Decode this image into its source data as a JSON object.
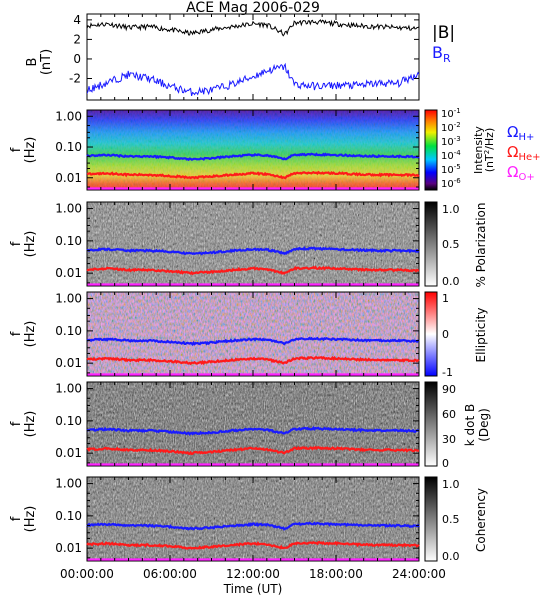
{
  "title": "ACE Mag 2006-029",
  "time_axis": {
    "label": "Time (UT)",
    "ticks": [
      "00:00:00",
      "06:00:00",
      "12:00:00",
      "18:00:00",
      "24:00:00"
    ],
    "range_hours": [
      0,
      24
    ]
  },
  "panels": {
    "b": {
      "ylabel": "B",
      "yunit": "(nT)",
      "ytick_labels": [
        "4",
        "2",
        "0",
        "-2"
      ],
      "ytick_values": [
        4,
        2,
        0,
        -2
      ],
      "ylim": [
        -4.2,
        4.6
      ]
    },
    "legend_b": {
      "total": "|B|",
      "radial": "B",
      "radial_sub": "R"
    },
    "freq_axis": {
      "ylabel": "f",
      "yunit": "(Hz)",
      "tick_labels": [
        "1.00",
        "0.10",
        "0.01"
      ],
      "tick_values": [
        1.0,
        0.1,
        0.01
      ],
      "range": [
        0.004,
        1.6
      ],
      "scale": "log"
    },
    "intensity": {
      "cbar_label_1": "Intensity",
      "cbar_label_2": "(nT",
      "cbar_label_3": "2",
      "cbar_label_4": "/Hz)",
      "cbar_ticks": [
        "10",
        "10",
        "10",
        "10",
        "10",
        "10"
      ],
      "cbar_exps": [
        "-1",
        "-2",
        "-3",
        "-4",
        "-5",
        "-6"
      ]
    },
    "polarization": {
      "cbar_label": "% Polarization",
      "cbar_ticks": [
        "1.0",
        "0.5",
        "0.0"
      ]
    },
    "ellipticity": {
      "cbar_label": "Ellipticity",
      "cbar_ticks": [
        "1",
        "0",
        "-1"
      ]
    },
    "kdotb": {
      "cbar_label_1": "k dot B",
      "cbar_label_2": "(Deg)",
      "cbar_ticks": [
        "90",
        "60",
        "30",
        "0"
      ]
    },
    "coherency": {
      "cbar_label": "Coherency",
      "cbar_ticks": [
        "1.0",
        "0.5",
        "0.0"
      ]
    }
  },
  "gyro_legend": {
    "omega": "Ω",
    "h": "H+",
    "he": "He+",
    "o": "O+"
  },
  "colors": {
    "b_total": "#000000",
    "b_radial": "#1a1aff",
    "gyro_h": "#1a1aff",
    "gyro_he": "#ff1a1a",
    "gyro_o": "#ff22ff"
  },
  "chart_data": {
    "type": "line",
    "title": "ACE Mag 2006-029",
    "xlabel": "Time (UT)",
    "x_hours": [
      0,
      1.5,
      3,
      4.5,
      6,
      7.5,
      9,
      10.5,
      12,
      13,
      14.3,
      15,
      16.5,
      18,
      19.5,
      21,
      22.5,
      24
    ],
    "series": [
      {
        "name": "|B|",
        "values": [
          3.4,
          3.6,
          3.2,
          3.3,
          3.0,
          2.6,
          3.0,
          3.3,
          3.6,
          3.5,
          2.5,
          3.7,
          3.8,
          3.6,
          3.4,
          3.3,
          3.2,
          3.1
        ]
      },
      {
        "name": "BR",
        "values": [
          -3.2,
          -2.4,
          -1.6,
          -2.0,
          -2.8,
          -3.4,
          -3.2,
          -2.6,
          -1.8,
          -1.2,
          -0.8,
          -2.6,
          -2.8,
          -2.7,
          -2.7,
          -2.5,
          -2.5,
          -1.5
        ]
      },
      {
        "name": "ΩH+",
        "values": [
          0.052,
          0.055,
          0.05,
          0.05,
          0.046,
          0.04,
          0.043,
          0.05,
          0.055,
          0.053,
          0.04,
          0.056,
          0.058,
          0.055,
          0.052,
          0.05,
          0.05,
          0.048
        ]
      },
      {
        "name": "ΩHe+",
        "values": [
          0.013,
          0.014,
          0.0125,
          0.0125,
          0.0115,
          0.01,
          0.011,
          0.0125,
          0.014,
          0.013,
          0.01,
          0.014,
          0.0145,
          0.014,
          0.013,
          0.0125,
          0.0125,
          0.012
        ]
      },
      {
        "name": "ΩO+",
        "values": [
          0.0033,
          0.0034,
          0.0031,
          0.0031,
          0.0029,
          0.0025,
          0.0027,
          0.0031,
          0.0034,
          0.0033,
          0.0025,
          0.0035,
          0.0036,
          0.0034,
          0.0033,
          0.0031,
          0.0031,
          0.003
        ]
      }
    ]
  }
}
